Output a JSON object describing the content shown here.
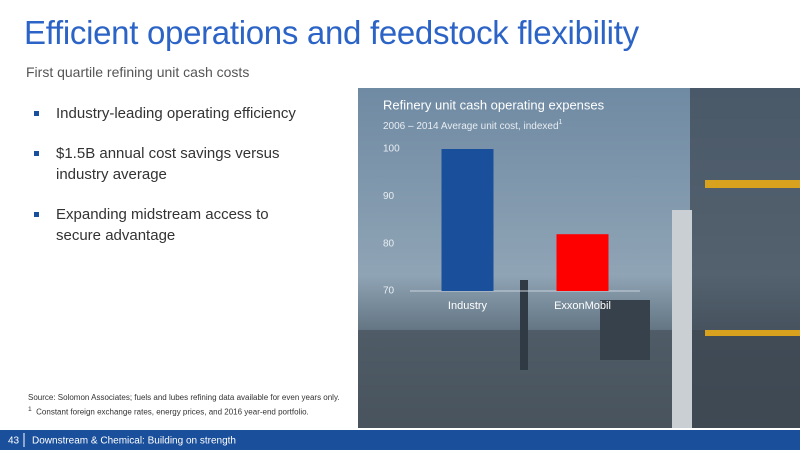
{
  "title": "Efficient operations and feedstock flexibility",
  "subtitle": "First quartile refining unit cash costs",
  "bullets": [
    "Industry-leading operating efficiency",
    "$1.5B annual cost savings versus industry average",
    "Expanding midstream access to secure advantage"
  ],
  "chart_data": {
    "type": "bar",
    "title": "Refinery unit cash operating expenses",
    "subtitle": "2006 – 2014 Average unit cost, indexed",
    "subtitle_note": "1",
    "categories": [
      "Industry",
      "ExxonMobil"
    ],
    "values": [
      100,
      82
    ],
    "colors": [
      "#1a4f9c",
      "#ff0000"
    ],
    "ylim": [
      70,
      100
    ],
    "yticks": [
      70,
      80,
      90,
      100
    ]
  },
  "footnotes": {
    "source": "Source: Solomon Associates; fuels and lubes refining data available for even years only.",
    "note_marker": "1",
    "note": "Constant foreign exchange rates, energy prices, and 2016 year-end portfolio."
  },
  "footer": {
    "page": "43",
    "text": "Downstream & Chemical: Building on strength"
  }
}
